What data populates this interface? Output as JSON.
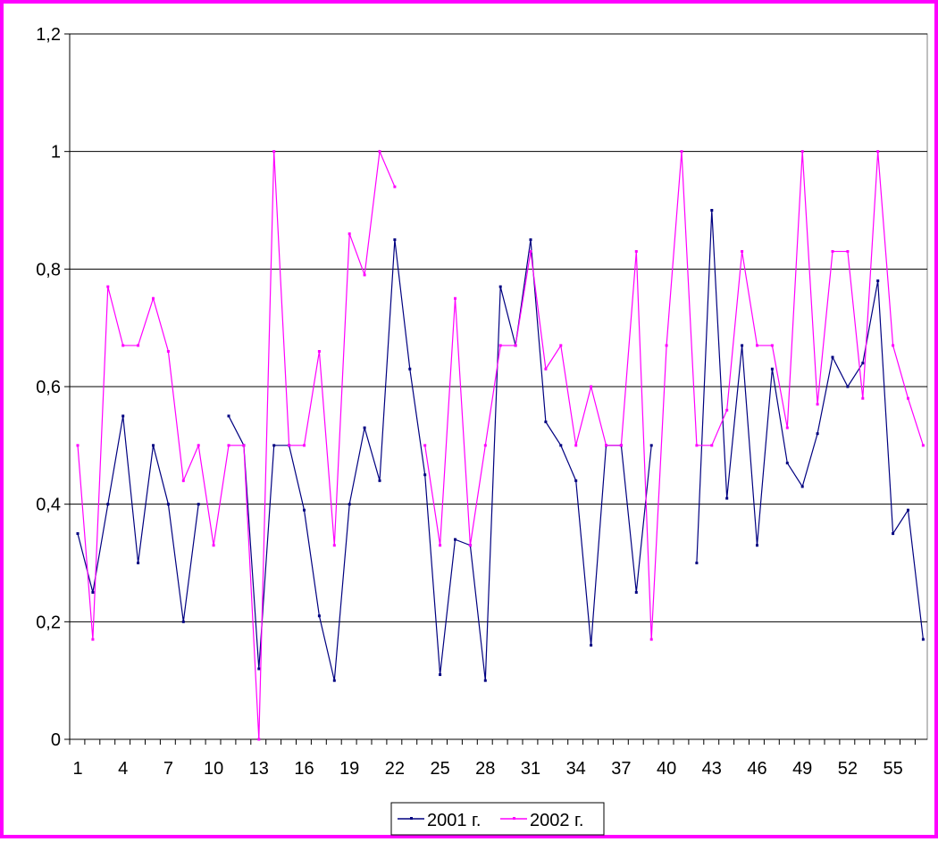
{
  "colors": {
    "frame": "#ff00ff",
    "series_2001": "#000080",
    "series_2002": "#ff00ff",
    "gridline": "#000000",
    "background": "#ffffff"
  },
  "chart_data": {
    "type": "line",
    "title": "",
    "xlabel": "",
    "ylabel": "",
    "ylim": [
      0,
      1.2
    ],
    "y_ticks": [
      0,
      0.2,
      0.4,
      0.6,
      0.8,
      1,
      1.2
    ],
    "y_tick_labels": [
      "0",
      "0,2",
      "0,4",
      "0,6",
      "0,8",
      "1",
      "1,2"
    ],
    "x": [
      1,
      2,
      3,
      4,
      5,
      6,
      7,
      8,
      9,
      10,
      11,
      12,
      13,
      14,
      15,
      16,
      17,
      18,
      19,
      20,
      21,
      22,
      23,
      24,
      25,
      26,
      27,
      28,
      29,
      30,
      31,
      32,
      33,
      34,
      35,
      36,
      37,
      38,
      39,
      40,
      41,
      42,
      43,
      44,
      45,
      46,
      47,
      48,
      49,
      50,
      51,
      52,
      53,
      54,
      55,
      56,
      57
    ],
    "x_tick_labels": [
      "1",
      "4",
      "7",
      "10",
      "13",
      "16",
      "19",
      "22",
      "25",
      "28",
      "31",
      "34",
      "37",
      "40",
      "43",
      "46",
      "49",
      "52",
      "55"
    ],
    "x_tick_positions": [
      1,
      4,
      7,
      10,
      13,
      16,
      19,
      22,
      25,
      28,
      31,
      34,
      37,
      40,
      43,
      46,
      49,
      52,
      55
    ],
    "grid": "horizontal",
    "legend_position": "bottom",
    "series": [
      {
        "name": "2001 г.",
        "values": [
          0.35,
          0.25,
          0.4,
          0.55,
          0.3,
          0.5,
          0.4,
          0.2,
          0.4,
          null,
          0.55,
          0.5,
          0.12,
          0.5,
          0.5,
          0.39,
          0.21,
          0.1,
          0.4,
          0.53,
          0.44,
          0.85,
          0.63,
          0.45,
          0.11,
          0.34,
          0.33,
          0.1,
          0.77,
          0.67,
          0.85,
          0.54,
          0.5,
          0.44,
          0.16,
          0.5,
          0.5,
          0.25,
          0.5,
          null,
          null,
          0.3,
          0.9,
          0.41,
          0.67,
          0.33,
          0.63,
          0.47,
          0.43,
          0.52,
          0.65,
          0.6,
          0.64,
          0.78,
          0.35,
          0.39,
          0.17
        ]
      },
      {
        "name": "2002 г.",
        "values": [
          0.5,
          0.17,
          0.77,
          0.67,
          0.67,
          0.75,
          0.66,
          0.44,
          0.5,
          0.33,
          0.5,
          0.5,
          0.0,
          1.0,
          0.5,
          0.5,
          0.66,
          0.33,
          0.86,
          0.79,
          1.0,
          0.94,
          null,
          0.5,
          0.33,
          0.75,
          0.33,
          0.5,
          0.67,
          0.67,
          0.83,
          0.63,
          0.67,
          0.5,
          0.6,
          0.5,
          0.5,
          0.83,
          0.17,
          0.67,
          1.0,
          0.5,
          0.5,
          0.56,
          0.83,
          0.67,
          0.67,
          0.53,
          1.0,
          0.57,
          0.83,
          0.83,
          0.58,
          1.0,
          0.67,
          0.58,
          0.5
        ]
      }
    ]
  }
}
